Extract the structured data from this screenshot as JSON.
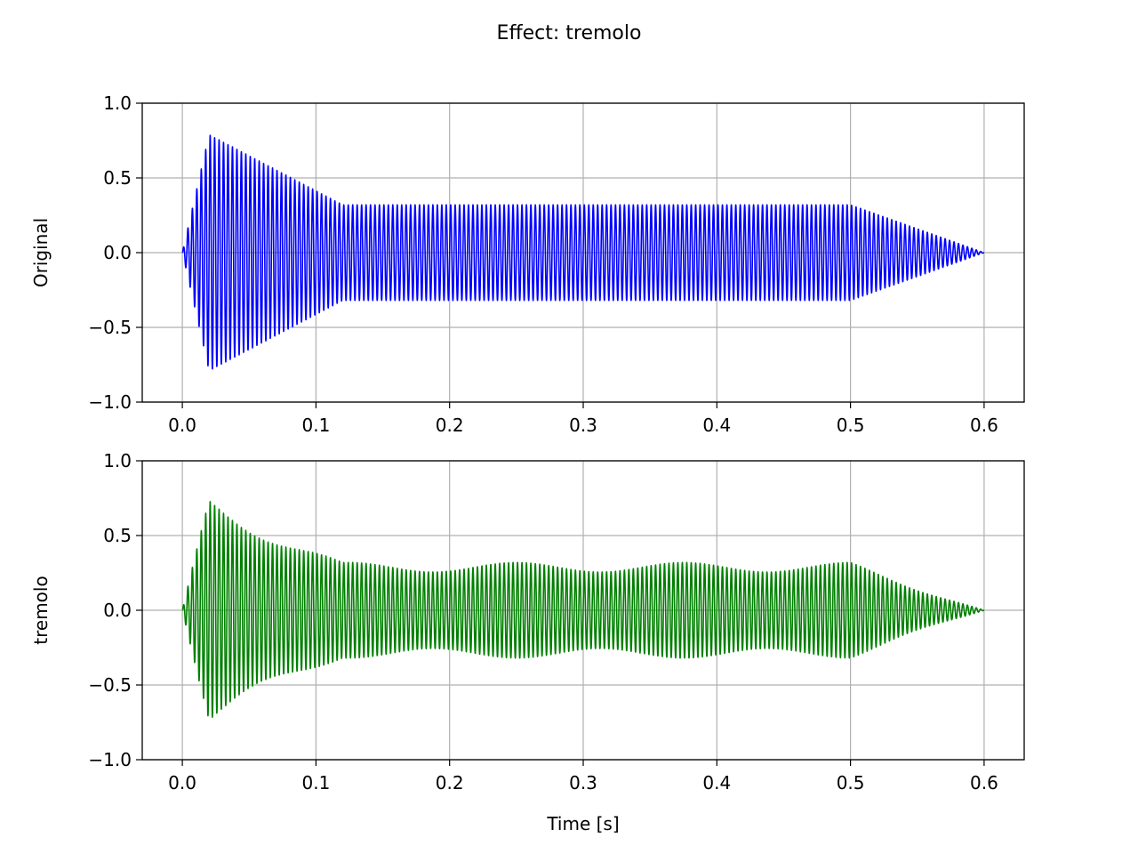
{
  "figure": {
    "suptitle": "Effect: tremolo",
    "background": "#ffffff",
    "grid_color": "#b0b0b0"
  },
  "chart_data": [
    {
      "type": "line",
      "title": "",
      "xlabel": "",
      "ylabel": "Original",
      "xlim": [
        -0.03,
        0.63
      ],
      "ylim": [
        -1.0,
        1.0
      ],
      "x_ticks": [
        0.0,
        0.1,
        0.2,
        0.3,
        0.4,
        0.5,
        0.6
      ],
      "x_tick_labels": [
        "0.0",
        "0.1",
        "0.2",
        "0.3",
        "0.4",
        "0.5",
        "0.6"
      ],
      "y_ticks": [
        1.0,
        0.5,
        0.0,
        -0.5,
        -1.0
      ],
      "y_tick_labels": [
        "1.0",
        "0.5",
        "0.0",
        "−0.5",
        "−1.0"
      ],
      "grid": true,
      "color": "#0000ff",
      "signal": {
        "duration_s": 0.6,
        "carrier_cycles_per_s": 300,
        "envelope_points": [
          [
            0.0,
            0.0
          ],
          [
            0.02,
            0.79
          ],
          [
            0.12,
            0.32
          ],
          [
            0.5,
            0.32
          ],
          [
            0.6,
            0.0
          ]
        ]
      }
    },
    {
      "type": "line",
      "title": "",
      "xlabel": "Time [s]",
      "ylabel": "tremolo",
      "xlim": [
        -0.03,
        0.63
      ],
      "ylim": [
        -1.0,
        1.0
      ],
      "x_ticks": [
        0.0,
        0.1,
        0.2,
        0.3,
        0.4,
        0.5,
        0.6
      ],
      "x_tick_labels": [
        "0.0",
        "0.1",
        "0.2",
        "0.3",
        "0.4",
        "0.5",
        "0.6"
      ],
      "y_ticks": [
        1.0,
        0.5,
        0.0,
        -0.5,
        -1.0
      ],
      "y_tick_labels": [
        "1.0",
        "0.5",
        "0.0",
        "−0.5",
        "−1.0"
      ],
      "grid": true,
      "color": "#008000",
      "signal": {
        "duration_s": 0.6,
        "carrier_cycles_per_s": 300,
        "envelope_points": [
          [
            0.0,
            0.0
          ],
          [
            0.02,
            0.77
          ],
          [
            0.12,
            0.32
          ],
          [
            0.5,
            0.32
          ],
          [
            0.6,
            0.0
          ]
        ],
        "tremolo_rate_hz": 8,
        "tremolo_depth": 0.2
      }
    }
  ]
}
